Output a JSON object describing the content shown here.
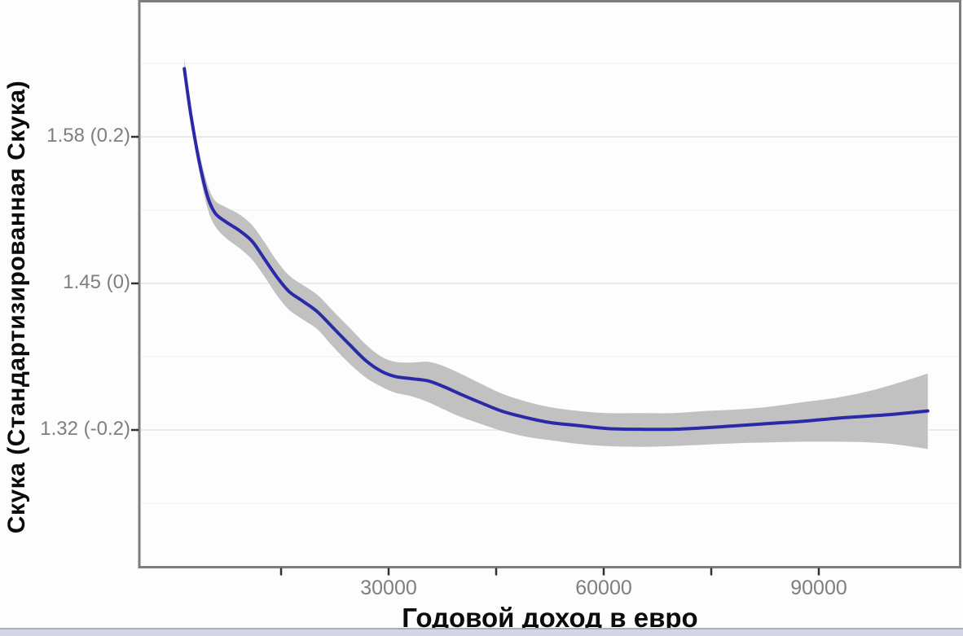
{
  "colors": {
    "line_blue": "#2a2aa8",
    "ci_band_gray": "#c1c1c1",
    "grid_major": "#ebebeb",
    "grid_minor": "#f3f3f3",
    "panel_border": "#7d7d7d",
    "tick_mark": "#2f2f2f",
    "tick_label": "#7e7e7e",
    "axis_title": "#0b0b0b",
    "bottom_bar": "#d2d7e3",
    "background": "#fdfdfe"
  },
  "chart_data": {
    "type": "line",
    "subtype": "smoothed-fit-with-confidence-band",
    "title": "",
    "xlabel": "Годовой доход в евро",
    "ylabel": "Скука (Стандартизированная Скука)",
    "legend_position": "none",
    "grid": "horizontal-only",
    "xlim": [
      0,
      110000
    ],
    "ylim_standardized": [
      -0.39,
      0.39
    ],
    "y_axis_note": "labels show raw boredom score with standardized value in parentheses",
    "x_ticks": [
      {
        "value": 15000,
        "label": ""
      },
      {
        "value": 30000,
        "label": "30000"
      },
      {
        "value": 45000,
        "label": ""
      },
      {
        "value": 60000,
        "label": "60000"
      },
      {
        "value": 75000,
        "label": ""
      },
      {
        "value": 90000,
        "label": "90000"
      }
    ],
    "y_ticks": [
      {
        "std": 0.2,
        "raw": 1.58,
        "label": "1.58 (0.2)"
      },
      {
        "std": 0.0,
        "raw": 1.45,
        "label": "1.45 (0)"
      },
      {
        "std": -0.2,
        "raw": 1.32,
        "label": "1.32 (-0.2)"
      }
    ],
    "y_minor_gridlines_std": [
      0.3,
      0.1,
      -0.1,
      -0.3
    ],
    "series": [
      {
        "name": "smoothed-fit",
        "points": [
          {
            "x": 1500,
            "y": 0.293,
            "lo": 0.281,
            "hi": 0.306
          },
          {
            "x": 2400,
            "y": 0.231,
            "lo": 0.22,
            "hi": 0.242
          },
          {
            "x": 3500,
            "y": 0.17,
            "lo": 0.157,
            "hi": 0.183
          },
          {
            "x": 4700,
            "y": 0.12,
            "lo": 0.104,
            "hi": 0.136
          },
          {
            "x": 5800,
            "y": 0.096,
            "lo": 0.078,
            "hi": 0.113
          },
          {
            "x": 7300,
            "y": 0.084,
            "lo": 0.062,
            "hi": 0.104
          },
          {
            "x": 9200,
            "y": 0.072,
            "lo": 0.048,
            "hi": 0.094
          },
          {
            "x": 11000,
            "y": 0.057,
            "lo": 0.032,
            "hi": 0.079
          },
          {
            "x": 12700,
            "y": 0.033,
            "lo": 0.009,
            "hi": 0.056
          },
          {
            "x": 14400,
            "y": 0.009,
            "lo": -0.016,
            "hi": 0.031
          },
          {
            "x": 16100,
            "y": -0.011,
            "lo": -0.036,
            "hi": 0.011
          },
          {
            "x": 18000,
            "y": -0.024,
            "lo": -0.049,
            "hi": -0.002
          },
          {
            "x": 20100,
            "y": -0.039,
            "lo": -0.063,
            "hi": -0.016
          },
          {
            "x": 22300,
            "y": -0.061,
            "lo": -0.087,
            "hi": -0.038
          },
          {
            "x": 24600,
            "y": -0.084,
            "lo": -0.11,
            "hi": -0.061
          },
          {
            "x": 26900,
            "y": -0.106,
            "lo": -0.129,
            "hi": -0.084
          },
          {
            "x": 29000,
            "y": -0.12,
            "lo": -0.141,
            "hi": -0.1
          },
          {
            "x": 30900,
            "y": -0.127,
            "lo": -0.149,
            "hi": -0.107
          },
          {
            "x": 33200,
            "y": -0.13,
            "lo": -0.154,
            "hi": -0.108
          },
          {
            "x": 35500,
            "y": -0.133,
            "lo": -0.162,
            "hi": -0.107
          },
          {
            "x": 37700,
            "y": -0.141,
            "lo": -0.172,
            "hi": -0.113
          },
          {
            "x": 40000,
            "y": -0.151,
            "lo": -0.182,
            "hi": -0.123
          },
          {
            "x": 42900,
            "y": -0.163,
            "lo": -0.192,
            "hi": -0.137
          },
          {
            "x": 45700,
            "y": -0.174,
            "lo": -0.201,
            "hi": -0.15
          },
          {
            "x": 49100,
            "y": -0.183,
            "lo": -0.209,
            "hi": -0.161
          },
          {
            "x": 52600,
            "y": -0.19,
            "lo": -0.214,
            "hi": -0.169
          },
          {
            "x": 56500,
            "y": -0.194,
            "lo": -0.219,
            "hi": -0.174
          },
          {
            "x": 60500,
            "y": -0.198,
            "lo": -0.222,
            "hi": -0.177
          },
          {
            "x": 65100,
            "y": -0.199,
            "lo": -0.223,
            "hi": -0.177
          },
          {
            "x": 69700,
            "y": -0.199,
            "lo": -0.222,
            "hi": -0.177
          },
          {
            "x": 74200,
            "y": -0.197,
            "lo": -0.22,
            "hi": -0.174
          },
          {
            "x": 78800,
            "y": -0.194,
            "lo": -0.218,
            "hi": -0.172
          },
          {
            "x": 83300,
            "y": -0.191,
            "lo": -0.217,
            "hi": -0.168
          },
          {
            "x": 87900,
            "y": -0.188,
            "lo": -0.216,
            "hi": -0.162
          },
          {
            "x": 92500,
            "y": -0.184,
            "lo": -0.216,
            "hi": -0.156
          },
          {
            "x": 97000,
            "y": -0.181,
            "lo": -0.217,
            "hi": -0.147
          },
          {
            "x": 101000,
            "y": -0.178,
            "lo": -0.22,
            "hi": -0.136
          },
          {
            "x": 105200,
            "y": -0.174,
            "lo": -0.226,
            "hi": -0.123
          }
        ]
      }
    ]
  }
}
